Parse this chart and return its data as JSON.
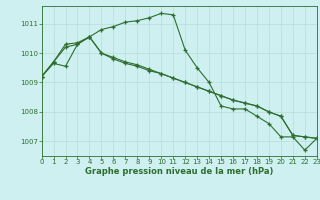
{
  "background_color": "#cff0f0",
  "grid_color": "#b8ddd8",
  "line_color": "#2d6e2d",
  "xlabel": "Graphe pression niveau de la mer (hPa)",
  "xlim": [
    0,
    23
  ],
  "ylim": [
    1006.5,
    1011.6
  ],
  "yticks": [
    1007,
    1008,
    1009,
    1010,
    1011
  ],
  "xticks": [
    0,
    1,
    2,
    3,
    4,
    5,
    6,
    7,
    8,
    9,
    10,
    11,
    12,
    13,
    14,
    15,
    16,
    17,
    18,
    19,
    20,
    21,
    22,
    23
  ],
  "series1_x": [
    0,
    1,
    2,
    3,
    4,
    5,
    6,
    7,
    8,
    9,
    10,
    11,
    12,
    13,
    14,
    15,
    16,
    17,
    18,
    19,
    20,
    21,
    22,
    23
  ],
  "series1_y": [
    1009.2,
    1009.7,
    1010.2,
    1010.3,
    1010.55,
    1010.8,
    1010.9,
    1011.05,
    1011.1,
    1011.2,
    1011.35,
    1011.3,
    1010.1,
    1009.5,
    1009.0,
    1008.2,
    1008.1,
    1008.1,
    1007.85,
    1007.6,
    1007.15,
    1007.15,
    1006.7,
    1007.1
  ],
  "series2_x": [
    0,
    1,
    2,
    3,
    4,
    5,
    6,
    7,
    8,
    9,
    10,
    11,
    12,
    13,
    14,
    15,
    16,
    17,
    18,
    19,
    20,
    21,
    22,
    23
  ],
  "series2_y": [
    1009.2,
    1009.7,
    1010.3,
    1010.35,
    1010.55,
    1010.0,
    1009.85,
    1009.7,
    1009.6,
    1009.45,
    1009.3,
    1009.15,
    1009.0,
    1008.85,
    1008.7,
    1008.55,
    1008.4,
    1008.3,
    1008.2,
    1008.0,
    1007.85,
    1007.2,
    1007.15,
    1007.1
  ],
  "series3_x": [
    0,
    1,
    2,
    3,
    4,
    5,
    6,
    7,
    8,
    9,
    10,
    11,
    12,
    13,
    14,
    15,
    16,
    17,
    18,
    19,
    20,
    21,
    22,
    23
  ],
  "series3_y": [
    1009.2,
    1009.65,
    1009.55,
    1010.3,
    1010.55,
    1010.0,
    1009.8,
    1009.65,
    1009.55,
    1009.4,
    1009.3,
    1009.15,
    1009.0,
    1008.85,
    1008.7,
    1008.55,
    1008.4,
    1008.3,
    1008.2,
    1008.0,
    1007.85,
    1007.2,
    1007.15,
    1007.1
  ],
  "tick_fontsize": 5.0,
  "xlabel_fontsize": 6.0
}
